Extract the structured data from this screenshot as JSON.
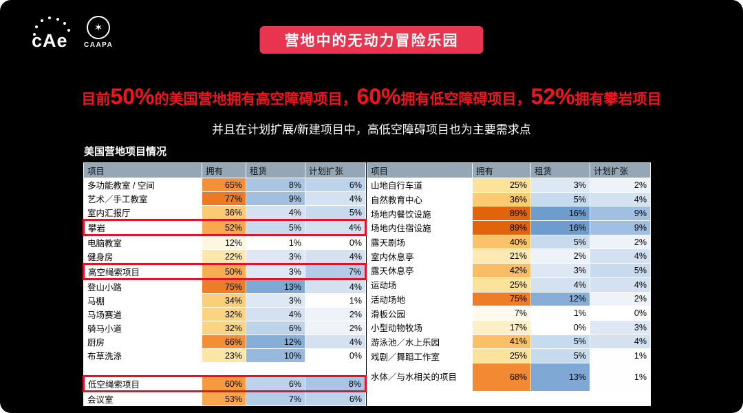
{
  "logos": {
    "cae": "cAe",
    "caapa": "CAAPA"
  },
  "banner": {
    "title": "营地中的无动力冒险乐园",
    "bg": "#E8344F"
  },
  "headline": {
    "color": "#F5111D",
    "segments": [
      {
        "text": "目前",
        "size": "small"
      },
      {
        "text": "50%",
        "size": "large"
      },
      {
        "text": "的美国营地拥有高空障碍项目，",
        "size": "small"
      },
      {
        "text": "60%",
        "size": "large"
      },
      {
        "text": "拥有低空障碍项目，",
        "size": "small"
      },
      {
        "text": "52%",
        "size": "large"
      },
      {
        "text": "拥有攀岩项目",
        "size": "small"
      }
    ]
  },
  "subheadline": "并且在计划扩展/新建项目中，高低空障碍项目也为主要需求点",
  "chart_data": {
    "type": "table",
    "title": "美国营地项目情况",
    "headers": [
      "项目",
      "拥有",
      "租赁",
      "计划扩张"
    ],
    "unit": "%",
    "header_bg": "#94A7B7",
    "highlight_color": "#E31227",
    "color_scales": {
      "own": [
        [
          0,
          "#FFFFFF"
        ],
        [
          12,
          "#FEF7E0"
        ],
        [
          25,
          "#FCE39C"
        ],
        [
          36,
          "#FACB72"
        ],
        [
          52,
          "#F8A94E"
        ],
        [
          68,
          "#F28A33"
        ],
        [
          77,
          "#EC7A23"
        ],
        [
          89,
          "#E2640A"
        ]
      ],
      "blue": [
        [
          0,
          "#FFFFFF"
        ],
        [
          1,
          "#FEFEFF"
        ],
        [
          3,
          "#DEE8F4"
        ],
        [
          5,
          "#C8DAEE"
        ],
        [
          8,
          "#A8C5E4"
        ],
        [
          13,
          "#7FA8D4"
        ],
        [
          16,
          "#6E9CCD"
        ]
      ]
    },
    "left_rows": [
      {
        "name": "多功能教室 / 空间",
        "own": 65,
        "rent": 8,
        "expand": 6
      },
      {
        "name": "艺术／手工教室",
        "own": 77,
        "rent": 9,
        "expand": 4
      },
      {
        "name": "室内汇报厅",
        "own": 36,
        "rent": 4,
        "expand": 5
      },
      {
        "name": "攀岩",
        "own": 52,
        "rent": 5,
        "expand": 4,
        "highlight": true
      },
      {
        "name": "电脑教室",
        "own": 12,
        "rent": 1,
        "expand": 0
      },
      {
        "name": "健身房",
        "own": 22,
        "rent": 3,
        "expand": 4
      },
      {
        "name": "高空绳索项目",
        "own": 50,
        "rent": 3,
        "expand": 7,
        "highlight": true
      },
      {
        "name": "登山小路",
        "own": 75,
        "rent": 13,
        "expand": 4
      },
      {
        "name": "马棚",
        "own": 34,
        "rent": 3,
        "expand": 1
      },
      {
        "name": "马场赛道",
        "own": 32,
        "rent": 4,
        "expand": 2
      },
      {
        "name": "骑马小道",
        "own": 32,
        "rent": 6,
        "expand": 2
      },
      {
        "name": "厨房",
        "own": 66,
        "rent": 12,
        "expand": 4
      },
      {
        "name": "布草洗涤",
        "own": 23,
        "rent": 10,
        "expand": 0
      },
      {
        "name": "",
        "own": null,
        "rent": null,
        "expand": null,
        "blank": true
      },
      {
        "name": "低空绳索项目",
        "own": 60,
        "rent": 6,
        "expand": 8,
        "highlight": true
      },
      {
        "name": "会议室",
        "own": 53,
        "rent": 7,
        "expand": 6
      }
    ],
    "right_rows": [
      {
        "name": "山地自行车道",
        "own": 25,
        "rent": 3,
        "expand": 2
      },
      {
        "name": "自然教育中心",
        "own": 36,
        "rent": 5,
        "expand": 4
      },
      {
        "name": "场地内餐饮设施",
        "own": 89,
        "rent": 16,
        "expand": 9
      },
      {
        "name": "场地内住宿设施",
        "own": 89,
        "rent": 16,
        "expand": 9
      },
      {
        "name": "露天剧场",
        "own": 40,
        "rent": 5,
        "expand": 2
      },
      {
        "name": "室内休息亭",
        "own": 21,
        "rent": 2,
        "expand": 4
      },
      {
        "name": "露天休息亭",
        "own": 42,
        "rent": 3,
        "expand": 5
      },
      {
        "name": "运动场",
        "own": 25,
        "rent": 4,
        "expand": 4
      },
      {
        "name": "活动场地",
        "own": 75,
        "rent": 12,
        "expand": 2
      },
      {
        "name": "滑板公园",
        "own": 7,
        "rent": 1,
        "expand": 0
      },
      {
        "name": "小型动物牧场",
        "own": 17,
        "rent": 0,
        "expand": 3
      },
      {
        "name": "游泳池／水上乐园",
        "own": 41,
        "rent": 5,
        "expand": 4
      },
      {
        "name": "戏剧／舞蹈工作室",
        "own": 25,
        "rent": 5,
        "expand": 1
      },
      {
        "name": "水体／与水相关的项目",
        "own": 68,
        "rent": 13,
        "expand": 1,
        "tall": true
      },
      {
        "name": "",
        "own": null,
        "rent": null,
        "expand": null,
        "blank": true
      }
    ]
  }
}
